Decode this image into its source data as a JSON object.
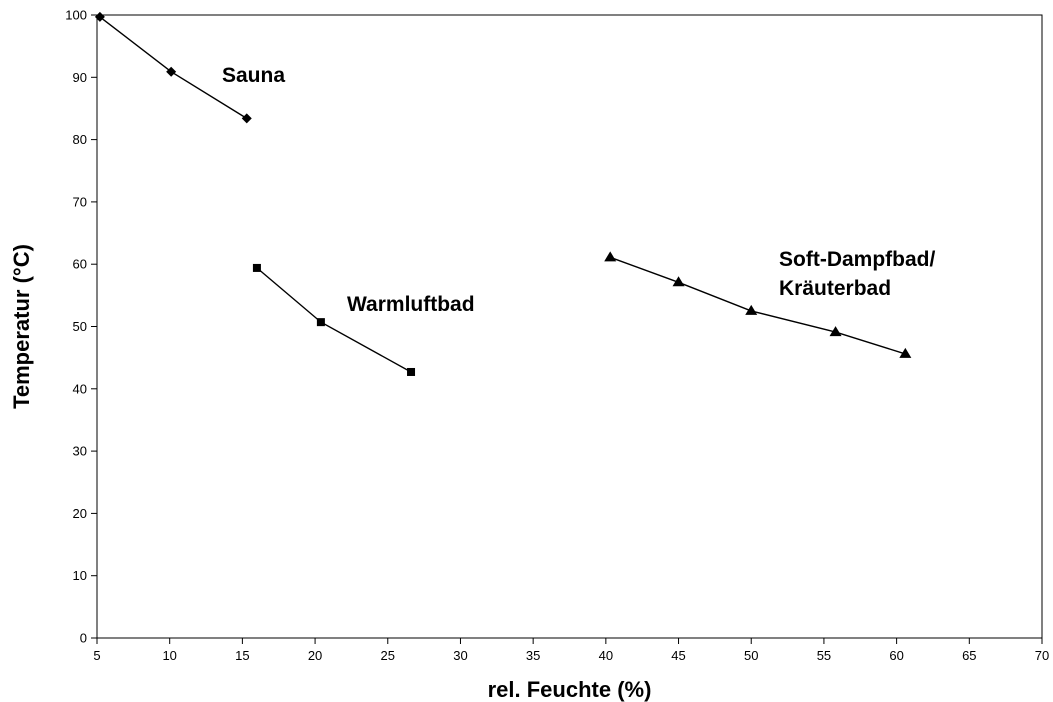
{
  "chart_data": {
    "type": "line",
    "xlabel": "rel. Feuchte (%)",
    "ylabel": "Temperatur (°C)",
    "xlim": [
      5,
      70
    ],
    "ylim": [
      0,
      100
    ],
    "xticks": [
      5,
      10,
      15,
      20,
      25,
      30,
      35,
      40,
      45,
      50,
      55,
      60,
      65,
      70
    ],
    "yticks": [
      0,
      10,
      20,
      30,
      40,
      50,
      60,
      70,
      80,
      90,
      100
    ],
    "grid": false,
    "legend": "none",
    "series": [
      {
        "name": "Sauna",
        "marker": "diamond",
        "label_lines": [
          "Sauna"
        ],
        "points": [
          [
            5.2,
            99.7
          ],
          [
            10.1,
            90.9
          ],
          [
            15.3,
            83.4
          ]
        ]
      },
      {
        "name": "Warmluftbad",
        "marker": "square",
        "label_lines": [
          "Warmluftbad"
        ],
        "points": [
          [
            16.0,
            59.4
          ],
          [
            20.4,
            50.7
          ],
          [
            26.6,
            42.7
          ]
        ]
      },
      {
        "name": "Soft-Dampfbad/ Kräuterbad",
        "marker": "triangle",
        "label_lines": [
          "Soft-Dampfbad/",
          "Kräuterbad"
        ],
        "points": [
          [
            40.3,
            61.1
          ],
          [
            45.0,
            57.1
          ],
          [
            50.0,
            52.5
          ],
          [
            55.8,
            49.1
          ],
          [
            60.6,
            45.6
          ]
        ]
      }
    ]
  }
}
